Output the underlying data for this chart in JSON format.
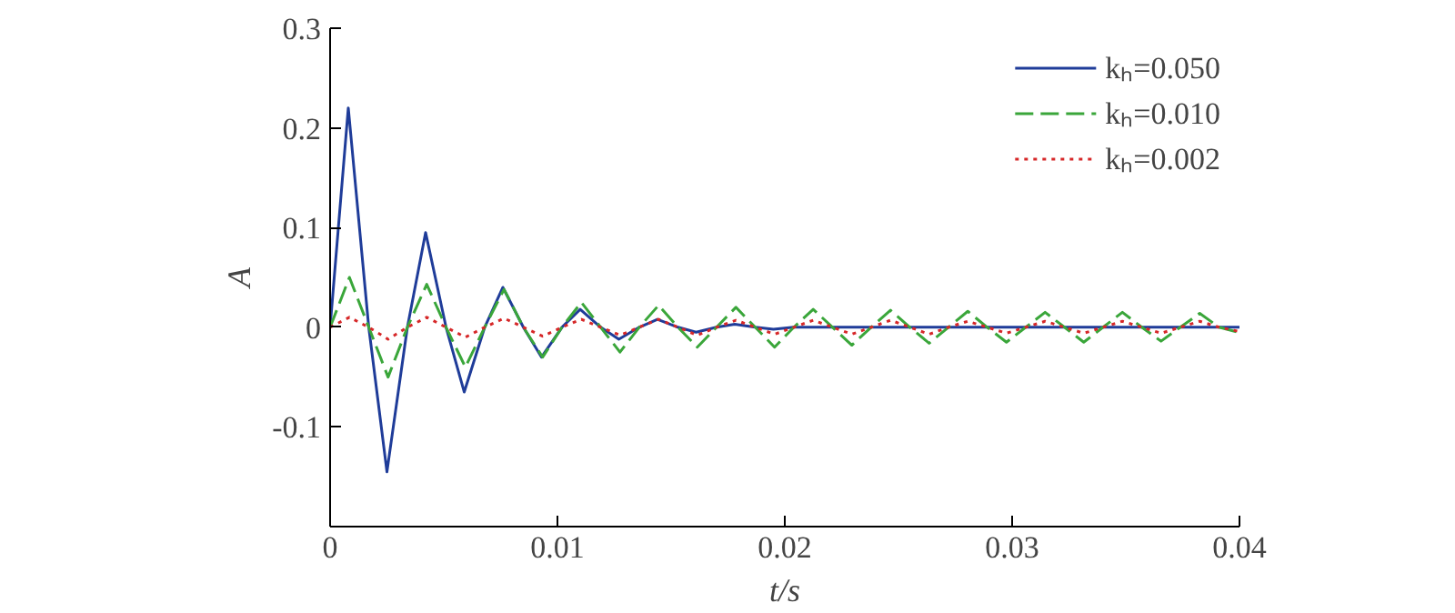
{
  "chart_data": {
    "type": "line",
    "xlabel": "t/s",
    "ylabel": "A",
    "xlim": [
      0,
      0.04
    ],
    "xticks": [
      0,
      0.01,
      0.02,
      0.03,
      0.04
    ],
    "ylim": [
      -0.2,
      0.3
    ],
    "yticks": [
      {
        "value": -0.2,
        "label": null
      },
      -0.1,
      0,
      0.1,
      0.2,
      0.3
    ],
    "grid": false,
    "legend": "top right",
    "marker": "none",
    "x": [
      0,
      0.00085,
      0.0017,
      0.00255,
      0.0034,
      0.00425,
      0.0051,
      0.00595,
      0.0068,
      0.00765,
      0.0085,
      0.00935,
      0.0102,
      0.01105,
      0.0119,
      0.01275,
      0.0136,
      0.01445,
      0.0153,
      0.01615,
      0.017,
      0.01785,
      0.0187,
      0.01955,
      0.0204,
      0.02125,
      0.0221,
      0.02295,
      0.0238,
      0.02465,
      0.0255,
      0.02635,
      0.0272,
      0.02805,
      0.0289,
      0.02975,
      0.0306,
      0.03145,
      0.0323,
      0.03315,
      0.034,
      0.03485,
      0.0357,
      0.03655,
      0.0374,
      0.03825,
      0.0391,
      0.03995
    ],
    "series": [
      {
        "name": "kₕ=0.050",
        "color": "#1f3c99",
        "line_style": "solid",
        "x": [
          0,
          0.0008,
          0.0017,
          0.0025,
          0.0034,
          0.0042,
          0.0051,
          0.0059,
          0.0068,
          0.0076,
          0.0085,
          0.0093,
          0.0102,
          0.011,
          0.0119,
          0.0127,
          0.0136,
          0.0144,
          0.0153,
          0.0161,
          0.017,
          0.0178,
          0.0187,
          0.0195,
          0.0204,
          0.04
        ],
        "values": [
          0,
          0.22,
          0,
          -0.145,
          0,
          0.095,
          0,
          -0.065,
          0,
          0.04,
          0,
          -0.03,
          0,
          0.018,
          0,
          -0.012,
          0,
          0.008,
          0,
          -0.005,
          0,
          0.003,
          0,
          -0.002,
          0,
          0
        ]
      },
      {
        "name": "kₕ=0.010",
        "color": "#3aa63a",
        "line_style": "dashed",
        "values": [
          0,
          0.05,
          0,
          -0.05,
          0,
          0.043,
          0,
          -0.04,
          0,
          0.038,
          0,
          -0.03,
          0,
          0.025,
          0,
          -0.025,
          0,
          0.022,
          0,
          -0.02,
          0,
          0.02,
          0,
          -0.02,
          0,
          0.018,
          0,
          -0.018,
          0,
          0.017,
          0,
          -0.016,
          0,
          0.016,
          0,
          -0.015,
          0,
          0.015,
          0,
          -0.015,
          0,
          0.015,
          0,
          -0.014,
          0,
          0.014,
          0,
          -0.005
        ]
      },
      {
        "name": "kₕ=0.002",
        "color": "#d62728",
        "line_style": "dotted",
        "values": [
          0,
          0.01,
          0,
          -0.012,
          0,
          0.01,
          0,
          -0.01,
          0,
          0.009,
          0,
          -0.009,
          0,
          0.008,
          0,
          -0.008,
          0,
          0.008,
          0,
          -0.008,
          0,
          0.007,
          0,
          -0.007,
          0,
          0.007,
          0,
          -0.007,
          0,
          0.007,
          0,
          -0.007,
          0,
          0.006,
          0,
          -0.006,
          0,
          0.006,
          0,
          -0.006,
          0,
          0.006,
          0,
          -0.006,
          0,
          0.006,
          0,
          -0.004
        ]
      }
    ]
  }
}
